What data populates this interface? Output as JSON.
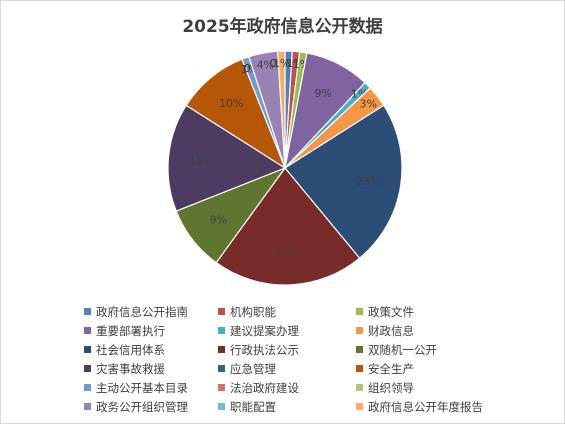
{
  "chart_data": {
    "type": "pie",
    "title": "2025年政府信息公开数据",
    "categories": [
      "政府信息公开指南",
      "机构职能",
      "政策文件",
      "重要部署执行",
      "建议提案办理",
      "财政信息",
      "社会信用体系",
      "行政执法公示",
      "双随机一公开",
      "灾害事故救援",
      "应急管理",
      "安全生产",
      "主动公开基本目录",
      "法治政府建设",
      "组织领导",
      "政务公开组织管理",
      "职能配置",
      "政府信息公开年度报告"
    ],
    "values": [
      1,
      1,
      1,
      9,
      1,
      3,
      23,
      21,
      9,
      15,
      0,
      10,
      1,
      0,
      0,
      4,
      0,
      1
    ],
    "labels": [
      "1%",
      "1%",
      "1%",
      "9%",
      "1%",
      "3%",
      "23%",
      "21%",
      "9%",
      "15%",
      "0%",
      "10%",
      "1%",
      "0%",
      "0%",
      "4%",
      "0%",
      "1%"
    ],
    "colors": [
      "#4f81bd",
      "#c0504d",
      "#9bbb59",
      "#8064a2",
      "#4bacc6",
      "#f79646",
      "#2c4d75",
      "#772c2a",
      "#5f7530",
      "#4d3b62",
      "#276a7c",
      "#b65708",
      "#729aca",
      "#d4716f",
      "#afc97a",
      "#9983b5",
      "#6fbdd1",
      "#f9ab6b"
    ],
    "legend_position": "bottom"
  }
}
